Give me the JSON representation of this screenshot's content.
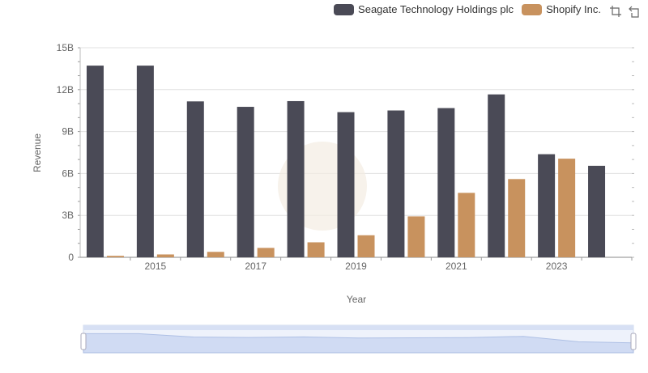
{
  "chart_data": {
    "type": "bar",
    "xlabel": "Year",
    "ylabel": "Revenue",
    "categories": [
      "2014",
      "2015",
      "2016",
      "2017",
      "2018",
      "2019",
      "2020",
      "2021",
      "2022",
      "2023",
      "2024"
    ],
    "x_tick_labels": [
      "2015",
      "2017",
      "2019",
      "2021",
      "2023"
    ],
    "y_tick_labels": [
      "0",
      "3B",
      "6B",
      "9B",
      "12B",
      "15B"
    ],
    "ylim": [
      0,
      15000000000
    ],
    "grid": true,
    "legend_position": "top-right",
    "series": [
      {
        "name": "Seagate Technology Holdings plc",
        "color": "#4a4a56",
        "values": [
          13720000000,
          13720000000,
          11160000000,
          10770000000,
          11180000000,
          10390000000,
          10510000000,
          10680000000,
          11660000000,
          7380000000,
          6550000000
        ]
      },
      {
        "name": "Shopify Inc.",
        "color": "#c8925e",
        "values": [
          105000000,
          205000000,
          389000000,
          673000000,
          1073000000,
          1578000000,
          2929000000,
          4612000000,
          5600000000,
          7060000000,
          null
        ]
      }
    ]
  },
  "toolbox": {
    "zoom_icon": "zoom-icon",
    "restore_icon": "restore-icon"
  }
}
